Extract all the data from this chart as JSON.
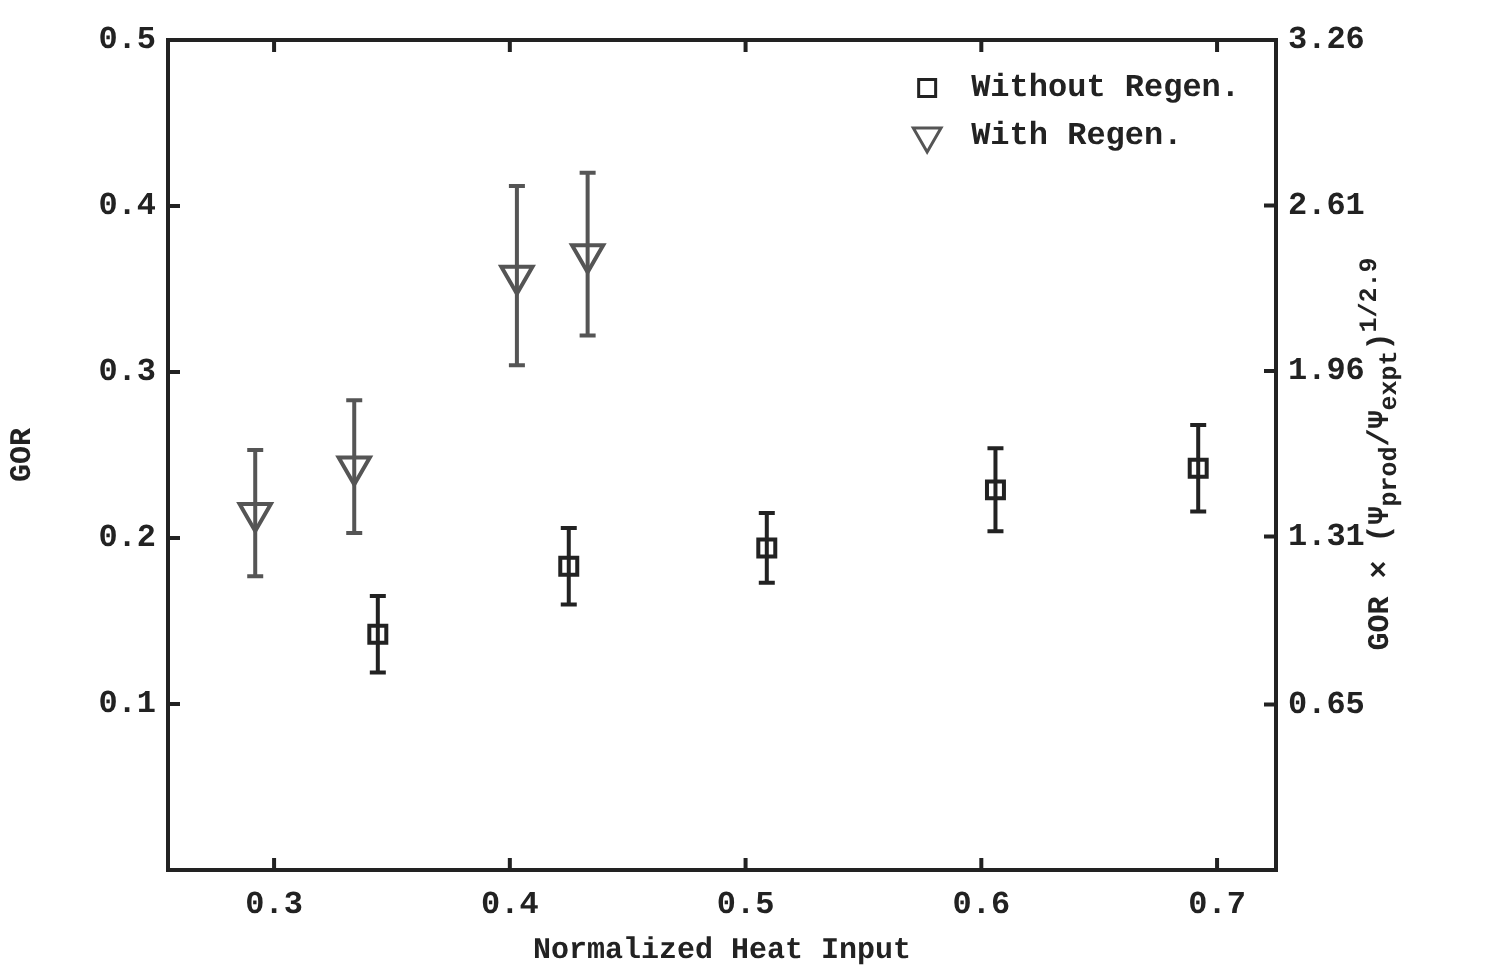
{
  "chart_data": {
    "type": "scatter",
    "xlabel": "Normalized Heat Input",
    "ylabel": "GOR",
    "y2label": "GOR × (Ψ$_{prod}$/Ψ$_{expt}$)$^{1/2.9}$",
    "xlim": [
      0.255,
      0.725
    ],
    "xticks": [
      0.3,
      0.4,
      0.5,
      0.6,
      0.7
    ],
    "ylim": [
      0,
      0.5
    ],
    "yticks": [
      {
        "value": 0,
        "label": null
      },
      0.1,
      0.2,
      0.3,
      0.4,
      0.5
    ],
    "y2lim": [
      0,
      3.26
    ],
    "y2ticks": [
      0.65,
      1.31,
      1.96,
      2.61,
      3.26
    ],
    "legend": "top right",
    "grid": false,
    "series": [
      {
        "name": "Without Regen.",
        "color": "#222222",
        "marker": "square",
        "x": [
          0.344,
          0.425,
          0.509,
          0.606,
          0.692
        ],
        "values": [
          0.142,
          0.183,
          0.194,
          0.229,
          0.242
        ],
        "errors": [
          0.023,
          0.023,
          0.021,
          0.025,
          0.026
        ]
      },
      {
        "name": "With Regen.",
        "color": "#555555",
        "marker": "triangle",
        "x": [
          0.292,
          0.334,
          0.403,
          0.433
        ],
        "values": [
          0.215,
          0.243,
          0.358,
          0.371
        ],
        "errors": [
          0.038,
          0.04,
          0.054,
          0.049
        ]
      }
    ]
  }
}
